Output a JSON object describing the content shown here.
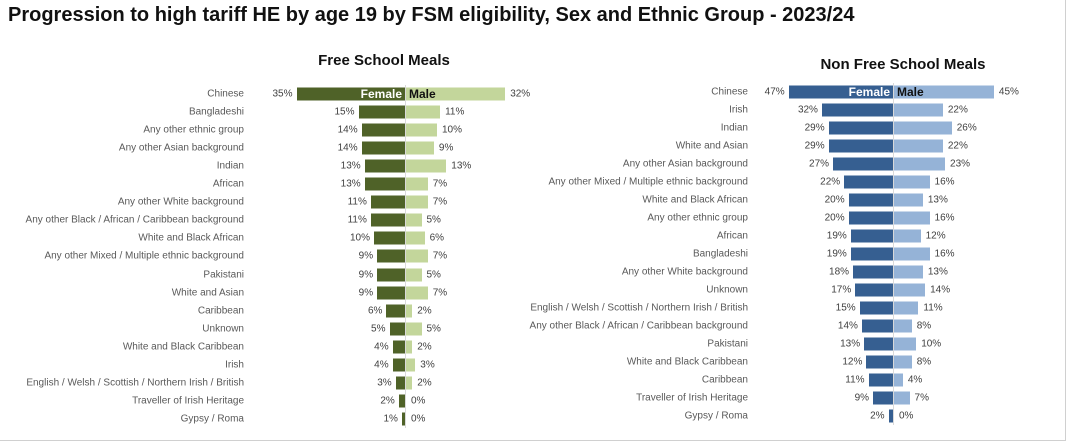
{
  "title": "Progression to high tariff HE by age 19 by FSM eligibility, Sex and Ethnic Group - 2023/24",
  "colors": {
    "fsm_female": "#4F6228",
    "fsm_male": "#C3D69B",
    "nfsm_female": "#365F91",
    "nfsm_male": "#95B3D7"
  },
  "chart_data": [
    {
      "type": "bar",
      "title": "Free School Meals",
      "orientation": "horizontal-diverging",
      "legend": [
        "Female",
        "Male"
      ],
      "categories": [
        "Chinese",
        "Bangladeshi",
        "Any other ethnic group",
        "Any other Asian background",
        "Indian",
        "African",
        "Any other White background",
        "Any other Black / African / Caribbean background",
        "White and Black African",
        "Any other Mixed / Multiple ethnic background",
        "Pakistani",
        "White and Asian",
        "Caribbean",
        "Unknown",
        "White and Black Caribbean",
        "Irish",
        "English / Welsh / Scottish / Northern Irish / British",
        "Traveller of Irish Heritage",
        "Gypsy / Roma"
      ],
      "series": [
        {
          "name": "Female",
          "values": [
            35,
            15,
            14,
            14,
            13,
            13,
            11,
            11,
            10,
            9,
            9,
            9,
            6,
            5,
            4,
            4,
            3,
            2,
            1
          ]
        },
        {
          "name": "Male",
          "values": [
            32,
            11,
            10,
            9,
            13,
            7,
            7,
            5,
            6,
            7,
            5,
            7,
            2,
            5,
            2,
            3,
            2,
            0,
            0
          ]
        }
      ],
      "unit": "%"
    },
    {
      "type": "bar",
      "title": "Non Free School Meals",
      "orientation": "horizontal-diverging",
      "legend": [
        "Female",
        "Male"
      ],
      "categories": [
        "Chinese",
        "Irish",
        "Indian",
        "White and Asian",
        "Any other Asian background",
        "Any other Mixed / Multiple ethnic background",
        "White and Black African",
        "Any other ethnic group",
        "African",
        "Bangladeshi",
        "Any other White background",
        "Unknown",
        "English / Welsh / Scottish / Northern Irish / British",
        "Any other Black / African / Caribbean background",
        "Pakistani",
        "White and Black Caribbean",
        "Caribbean",
        "Traveller of Irish Heritage",
        "Gypsy / Roma"
      ],
      "series": [
        {
          "name": "Female",
          "values": [
            47,
            32,
            29,
            29,
            27,
            22,
            20,
            20,
            19,
            19,
            18,
            17,
            15,
            14,
            13,
            12,
            11,
            9,
            2
          ]
        },
        {
          "name": "Male",
          "values": [
            45,
            22,
            26,
            22,
            23,
            16,
            13,
            16,
            12,
            16,
            13,
            14,
            11,
            8,
            10,
            8,
            4,
            7,
            0
          ]
        }
      ],
      "unit": "%"
    }
  ]
}
